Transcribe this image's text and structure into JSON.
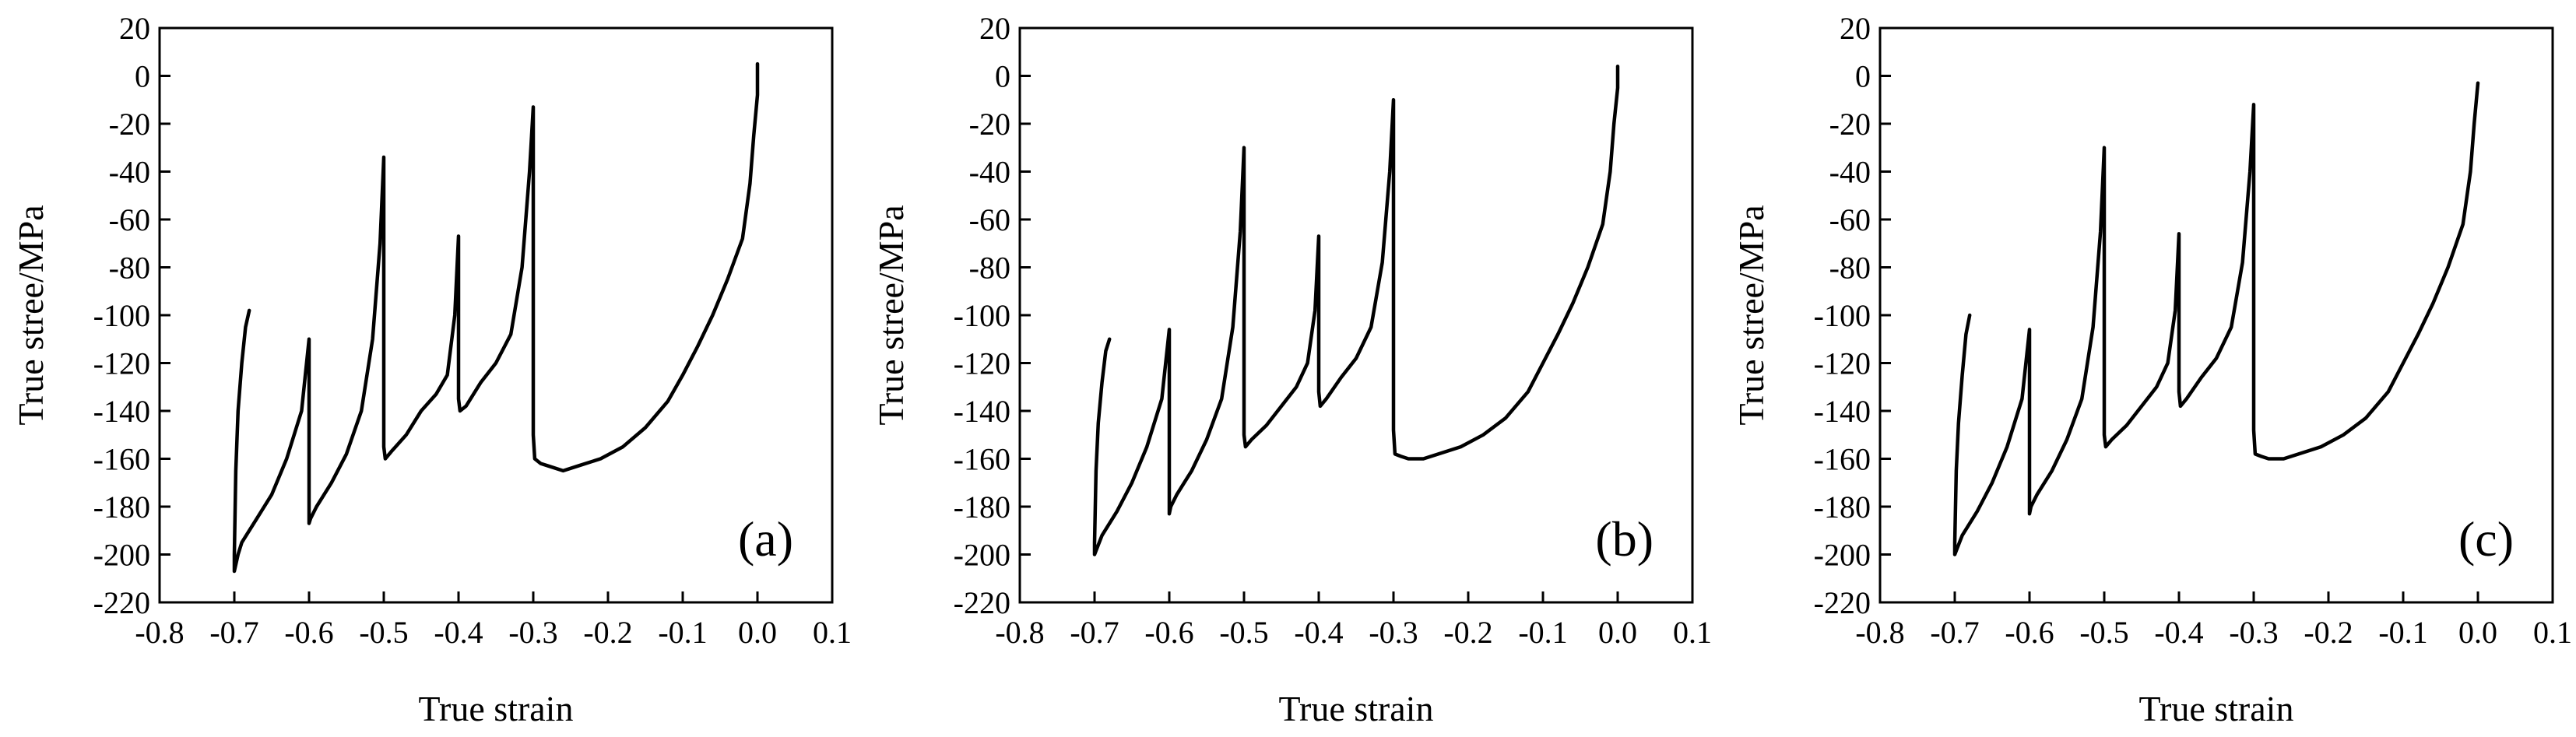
{
  "chart_data": [
    {
      "type": "line",
      "panel_label": "(a)",
      "xlabel": "True strain",
      "ylabel": "True stree/MPa",
      "xlim": [
        -0.8,
        0.1
      ],
      "ylim": [
        -220,
        20
      ],
      "xticks": [
        "-0.8",
        "-0.7",
        "-0.6",
        "-0.5",
        "-0.4",
        "-0.3",
        "-0.2",
        "-0.1",
        "0.0",
        "0.1"
      ],
      "yticks": [
        "20",
        "0",
        "-20",
        "-40",
        "-60",
        "-80",
        "-100",
        "-120",
        "-140",
        "-160",
        "-180",
        "-200",
        "-220"
      ],
      "grid": false,
      "series": [
        {
          "x": [
            0.0,
            0.0,
            -0.005,
            -0.01,
            -0.02,
            -0.04,
            -0.06,
            -0.08,
            -0.1,
            -0.12,
            -0.15,
            -0.18,
            -0.21,
            -0.24,
            -0.26,
            -0.28,
            -0.29,
            -0.298,
            -0.3,
            -0.3,
            -0.305,
            -0.315,
            -0.33,
            -0.35,
            -0.37,
            -0.39,
            -0.398,
            -0.4,
            -0.4,
            -0.405,
            -0.415,
            -0.43,
            -0.45,
            -0.47,
            -0.49,
            -0.498,
            -0.5,
            -0.5,
            -0.505,
            -0.515,
            -0.53,
            -0.55,
            -0.57,
            -0.59,
            -0.598,
            -0.6,
            -0.6,
            -0.61,
            -0.63,
            -0.65,
            -0.67,
            -0.69,
            -0.695,
            -0.7,
            -0.7,
            -0.698,
            -0.695,
            -0.69,
            -0.685,
            -0.68
          ],
          "y": [
            5,
            -8,
            -25,
            -45,
            -68,
            -85,
            -100,
            -113,
            -125,
            -136,
            -147,
            -155,
            -160,
            -163,
            -165,
            -163,
            -162,
            -160,
            -150,
            -13,
            -40,
            -80,
            -108,
            -120,
            -128,
            -138,
            -140,
            -135,
            -67,
            -100,
            -125,
            -133,
            -140,
            -150,
            -157,
            -160,
            -155,
            -34,
            -70,
            -110,
            -140,
            -158,
            -170,
            -180,
            -185,
            -187,
            -110,
            -140,
            -160,
            -175,
            -185,
            -195,
            -200,
            -207,
            -200,
            -165,
            -140,
            -120,
            -105,
            -98
          ]
        }
      ]
    },
    {
      "type": "line",
      "panel_label": "(b)",
      "xlabel": "True strain",
      "ylabel": "True stree/MPa",
      "xlim": [
        -0.8,
        0.1
      ],
      "ylim": [
        -220,
        20
      ],
      "xticks": [
        "-0.8",
        "-0.7",
        "-0.6",
        "-0.5",
        "-0.4",
        "-0.3",
        "-0.2",
        "-0.1",
        "0.0",
        "0.1"
      ],
      "yticks": [
        "20",
        "0",
        "-20",
        "-40",
        "-60",
        "-80",
        "-100",
        "-120",
        "-140",
        "-160",
        "-180",
        "-200",
        "-220"
      ],
      "grid": false,
      "series": [
        {
          "x": [
            0.0,
            0.0,
            -0.005,
            -0.01,
            -0.02,
            -0.04,
            -0.06,
            -0.08,
            -0.1,
            -0.12,
            -0.15,
            -0.18,
            -0.21,
            -0.24,
            -0.26,
            -0.28,
            -0.29,
            -0.298,
            -0.3,
            -0.3,
            -0.305,
            -0.315,
            -0.33,
            -0.35,
            -0.37,
            -0.39,
            -0.398,
            -0.4,
            -0.4,
            -0.405,
            -0.415,
            -0.43,
            -0.45,
            -0.47,
            -0.49,
            -0.498,
            -0.5,
            -0.5,
            -0.505,
            -0.515,
            -0.53,
            -0.55,
            -0.57,
            -0.59,
            -0.598,
            -0.6,
            -0.6,
            -0.61,
            -0.63,
            -0.65,
            -0.67,
            -0.69,
            -0.695,
            -0.7,
            -0.7,
            -0.698,
            -0.695,
            -0.69,
            -0.685,
            -0.68
          ],
          "y": [
            4,
            -5,
            -20,
            -40,
            -62,
            -80,
            -95,
            -108,
            -120,
            -132,
            -143,
            -150,
            -155,
            -158,
            -160,
            -160,
            -159,
            -158,
            -148,
            -10,
            -40,
            -78,
            -105,
            -118,
            -126,
            -135,
            -138,
            -132,
            -67,
            -98,
            -120,
            -130,
            -138,
            -146,
            -152,
            -155,
            -150,
            -30,
            -65,
            -105,
            -135,
            -152,
            -165,
            -175,
            -180,
            -183,
            -106,
            -135,
            -155,
            -170,
            -182,
            -192,
            -196,
            -200,
            -195,
            -165,
            -145,
            -128,
            -115,
            -110
          ]
        }
      ]
    },
    {
      "type": "line",
      "panel_label": "(c)",
      "xlabel": "True strain",
      "ylabel": "True stree/MPa",
      "xlim": [
        -0.8,
        0.1
      ],
      "ylim": [
        -220,
        20
      ],
      "xticks": [
        "-0.8",
        "-0.7",
        "-0.6",
        "-0.5",
        "-0.4",
        "-0.3",
        "-0.2",
        "-0.1",
        "0.0",
        "0.1"
      ],
      "yticks": [
        "20",
        "0",
        "-20",
        "-40",
        "-60",
        "-80",
        "-100",
        "-120",
        "-140",
        "-160",
        "-180",
        "-200",
        "-220"
      ],
      "grid": false,
      "series": [
        {
          "x": [
            0.0,
            -0.005,
            -0.01,
            -0.02,
            -0.04,
            -0.06,
            -0.08,
            -0.1,
            -0.12,
            -0.15,
            -0.18,
            -0.21,
            -0.24,
            -0.26,
            -0.28,
            -0.29,
            -0.298,
            -0.3,
            -0.3,
            -0.305,
            -0.315,
            -0.33,
            -0.35,
            -0.37,
            -0.39,
            -0.398,
            -0.4,
            -0.4,
            -0.405,
            -0.415,
            -0.43,
            -0.45,
            -0.47,
            -0.49,
            -0.498,
            -0.5,
            -0.5,
            -0.505,
            -0.515,
            -0.53,
            -0.55,
            -0.57,
            -0.59,
            -0.598,
            -0.6,
            -0.6,
            -0.61,
            -0.63,
            -0.65,
            -0.67,
            -0.69,
            -0.695,
            -0.7,
            -0.7,
            -0.698,
            -0.695,
            -0.69,
            -0.685,
            -0.68
          ],
          "y": [
            -3,
            -20,
            -40,
            -62,
            -80,
            -95,
            -108,
            -120,
            -132,
            -143,
            -150,
            -155,
            -158,
            -160,
            -160,
            -159,
            -158,
            -148,
            -12,
            -40,
            -78,
            -105,
            -118,
            -126,
            -135,
            -138,
            -132,
            -66,
            -98,
            -120,
            -130,
            -138,
            -146,
            -152,
            -155,
            -150,
            -30,
            -65,
            -105,
            -135,
            -152,
            -165,
            -175,
            -180,
            -183,
            -106,
            -135,
            -155,
            -170,
            -182,
            -192,
            -196,
            -200,
            -195,
            -165,
            -145,
            -125,
            -108,
            -100
          ]
        }
      ]
    }
  ]
}
